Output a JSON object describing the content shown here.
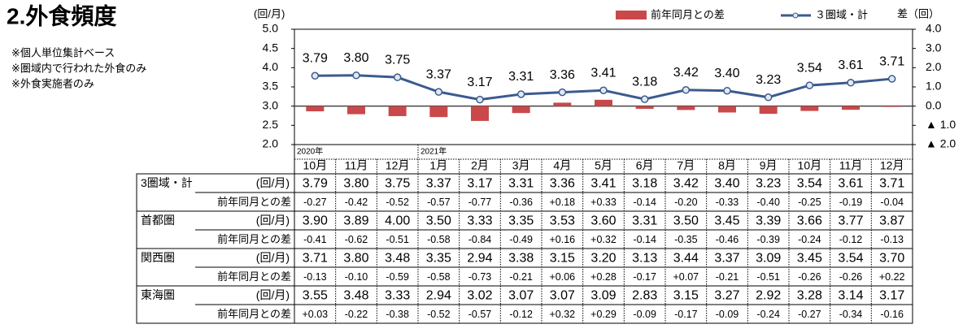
{
  "title": "2.外食頻度",
  "notes": [
    "※個人単位集計ベース",
    "※圏域内で行われた外食のみ",
    "※外食実施者のみ"
  ],
  "chart_data": {
    "type": "combo",
    "y_label": "(回/月)",
    "y2_label": "差（回）",
    "categories": [
      "10月",
      "11月",
      "12月",
      "1月",
      "2月",
      "3月",
      "4月",
      "5月",
      "6月",
      "7月",
      "8月",
      "9月",
      "10月",
      "11月",
      "12月"
    ],
    "year_labels": [
      "2020年",
      null,
      null,
      "2021年",
      null,
      null,
      null,
      null,
      null,
      null,
      null,
      null,
      null,
      null,
      null
    ],
    "ylim": [
      2,
      5
    ],
    "yticks": [
      {
        "value": 2,
        "label": "2.0"
      },
      2.5,
      {
        "value": 3,
        "label": "3.0"
      },
      3.5,
      {
        "value": 4,
        "label": "4.0"
      },
      4.5,
      {
        "value": 5,
        "label": "5.0"
      }
    ],
    "y2lim": [
      -2,
      4
    ],
    "y2ticks": [
      {
        "value": -2,
        "label": "▲ 2.0"
      },
      {
        "value": -1,
        "label": "▲ 1.0"
      },
      {
        "value": 0,
        "label": "0.0"
      },
      {
        "value": 1,
        "label": "1.0"
      },
      {
        "value": 2,
        "label": "2.0"
      },
      {
        "value": 3,
        "label": "3.0"
      },
      {
        "value": 4,
        "label": "4.0"
      }
    ],
    "series": [
      {
        "name": "前年同月との差",
        "type": "bar",
        "axis": "y2",
        "color": "#c9494a",
        "values": [
          -0.27,
          -0.42,
          -0.52,
          -0.57,
          -0.77,
          -0.36,
          0.18,
          0.33,
          -0.14,
          -0.2,
          -0.33,
          -0.4,
          -0.25,
          -0.19,
          -0.04
        ]
      },
      {
        "name": "３圏域・計",
        "type": "line",
        "color": "#3b5b8f",
        "values": [
          3.79,
          3.8,
          3.75,
          3.37,
          3.17,
          3.31,
          3.36,
          3.41,
          3.18,
          3.42,
          3.4,
          3.23,
          3.54,
          3.61,
          3.71
        ],
        "value_labels": [
          "3.79",
          "3.80",
          "3.75",
          "3.37",
          "3.17",
          "3.31",
          "3.36",
          "3.41",
          "3.18",
          "3.42",
          "3.40",
          "3.23",
          "3.54",
          "3.61",
          "3.71"
        ]
      }
    ]
  },
  "table": {
    "rows": [
      {
        "label": "3圏域・計",
        "unit": "(回/月)",
        "values": [
          "3.79",
          "3.80",
          "3.75",
          "3.37",
          "3.17",
          "3.31",
          "3.36",
          "3.41",
          "3.18",
          "3.42",
          "3.40",
          "3.23",
          "3.54",
          "3.61",
          "3.71"
        ]
      },
      {
        "label": "前年同月との差",
        "values": [
          "-0.27",
          "-0.42",
          "-0.52",
          "-0.57",
          "-0.77",
          "-0.36",
          "+0.18",
          "+0.33",
          "-0.14",
          "-0.20",
          "-0.33",
          "-0.40",
          "-0.25",
          "-0.19",
          "-0.04"
        ]
      },
      {
        "label": "首都圏",
        "unit": "(回/月)",
        "values": [
          "3.90",
          "3.89",
          "4.00",
          "3.50",
          "3.33",
          "3.35",
          "3.53",
          "3.60",
          "3.31",
          "3.50",
          "3.45",
          "3.39",
          "3.66",
          "3.77",
          "3.87"
        ]
      },
      {
        "label": "前年同月との差",
        "values": [
          "-0.41",
          "-0.62",
          "-0.51",
          "-0.58",
          "-0.84",
          "-0.49",
          "+0.16",
          "+0.32",
          "-0.14",
          "-0.35",
          "-0.46",
          "-0.39",
          "-0.24",
          "-0.12",
          "-0.13"
        ]
      },
      {
        "label": "関西圏",
        "unit": "(回/月)",
        "values": [
          "3.71",
          "3.80",
          "3.48",
          "3.35",
          "2.94",
          "3.38",
          "3.15",
          "3.20",
          "3.13",
          "3.44",
          "3.37",
          "3.09",
          "3.45",
          "3.54",
          "3.70"
        ]
      },
      {
        "label": "前年同月との差",
        "values": [
          "-0.13",
          "-0.10",
          "-0.59",
          "-0.58",
          "-0.73",
          "-0.21",
          "+0.06",
          "+0.28",
          "-0.17",
          "+0.07",
          "-0.21",
          "-0.51",
          "-0.26",
          "-0.26",
          "+0.22"
        ]
      },
      {
        "label": "東海圏",
        "unit": "(回/月)",
        "values": [
          "3.55",
          "3.48",
          "3.33",
          "2.94",
          "3.02",
          "3.07",
          "3.07",
          "3.09",
          "2.83",
          "3.15",
          "3.27",
          "2.92",
          "3.28",
          "3.14",
          "3.17"
        ]
      },
      {
        "label": "前年同月との差",
        "values": [
          "+0.03",
          "-0.22",
          "-0.38",
          "-0.52",
          "-0.57",
          "-0.12",
          "+0.32",
          "+0.29",
          "-0.09",
          "-0.17",
          "-0.09",
          "-0.24",
          "-0.27",
          "-0.34",
          "-0.16"
        ]
      }
    ]
  }
}
